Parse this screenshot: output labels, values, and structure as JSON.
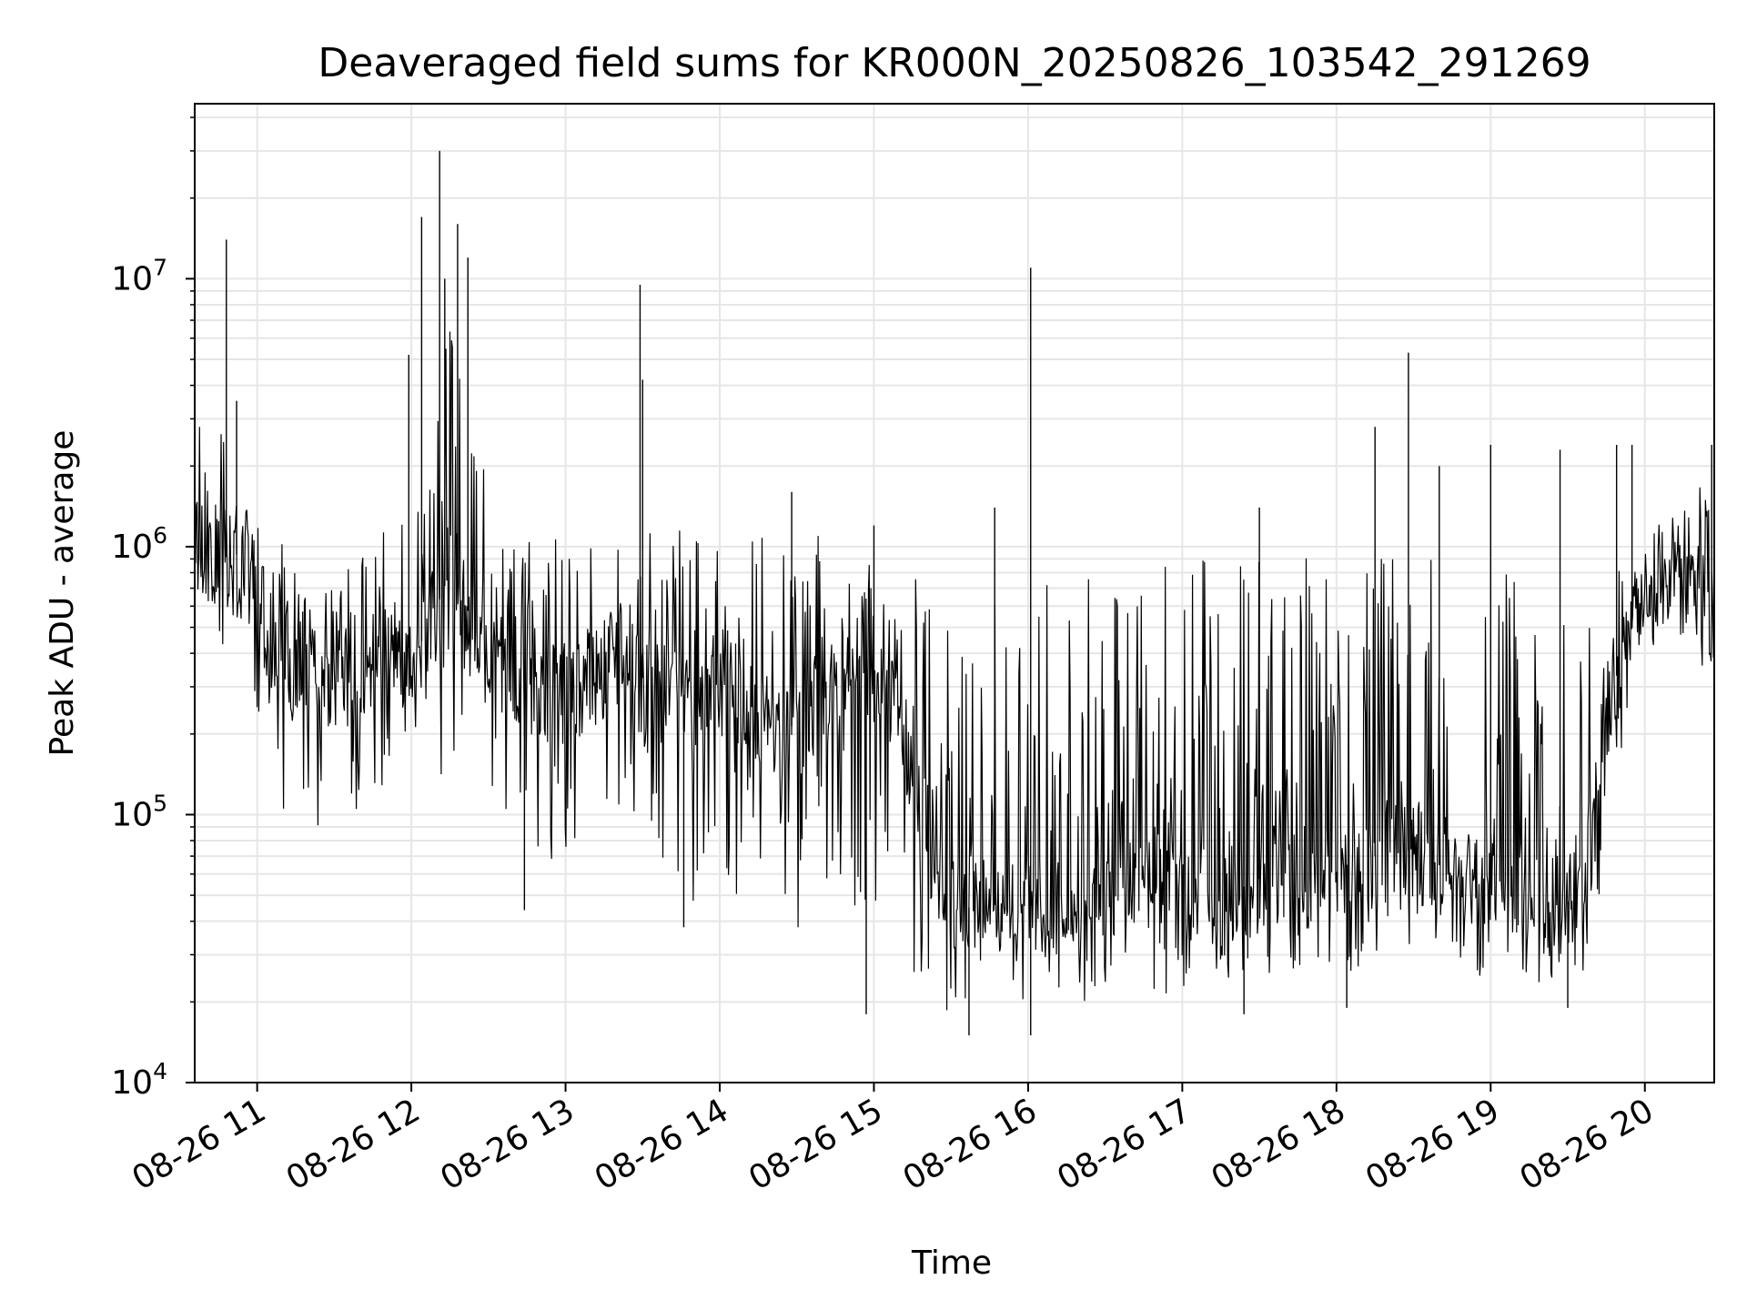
{
  "chart_data": {
    "type": "line",
    "title": "Deaveraged field sums for KR000N_20250826_103542_291269",
    "xlabel": "Time",
    "ylabel": "Peak ADU - average",
    "yscale": "log",
    "ylim": [
      10000,
      45000000
    ],
    "xlim": [
      "2025-08-26 10:35:42",
      "2025-08-26 20:27:00"
    ],
    "grid": true,
    "grid_color": "#e6e6e6",
    "line_color": "#000000",
    "x_ticks": [
      {
        "label": "08-26 11",
        "time": "2025-08-26 11:00"
      },
      {
        "label": "08-26 12",
        "time": "2025-08-26 12:00"
      },
      {
        "label": "08-26 13",
        "time": "2025-08-26 13:00"
      },
      {
        "label": "08-26 14",
        "time": "2025-08-26 14:00"
      },
      {
        "label": "08-26 15",
        "time": "2025-08-26 15:00"
      },
      {
        "label": "08-26 16",
        "time": "2025-08-26 16:00"
      },
      {
        "label": "08-26 17",
        "time": "2025-08-26 17:00"
      },
      {
        "label": "08-26 18",
        "time": "2025-08-26 18:00"
      },
      {
        "label": "08-26 19",
        "time": "2025-08-26 19:00"
      },
      {
        "label": "08-26 20",
        "time": "2025-08-26 20:00"
      }
    ],
    "y_ticks": [
      {
        "base": "10",
        "exp": "4",
        "value": 10000
      },
      {
        "base": "10",
        "exp": "5",
        "value": 100000
      },
      {
        "base": "10",
        "exp": "6",
        "value": 1000000
      },
      {
        "base": "10",
        "exp": "7",
        "value": 10000000
      }
    ],
    "series": [
      {
        "x": [
          "2025-08-26 10:35",
          "2025-08-26 10:45",
          "2025-08-26 10:55",
          "2025-08-26 11:05",
          "2025-08-26 11:15",
          "2025-08-26 11:25",
          "2025-08-26 11:35",
          "2025-08-26 11:45",
          "2025-08-26 11:55",
          "2025-08-26 12:05",
          "2025-08-26 12:15",
          "2025-08-26 12:25",
          "2025-08-26 12:35",
          "2025-08-26 12:45",
          "2025-08-26 12:55",
          "2025-08-26 13:05",
          "2025-08-26 13:15",
          "2025-08-26 13:25",
          "2025-08-26 13:35",
          "2025-08-26 13:45",
          "2025-08-26 13:55",
          "2025-08-26 14:05",
          "2025-08-26 14:15",
          "2025-08-26 14:25",
          "2025-08-26 14:35",
          "2025-08-26 14:45",
          "2025-08-26 14:55",
          "2025-08-26 15:05",
          "2025-08-26 15:15",
          "2025-08-26 15:25",
          "2025-08-26 15:35",
          "2025-08-26 15:45",
          "2025-08-26 15:55",
          "2025-08-26 16:05",
          "2025-08-26 16:15",
          "2025-08-26 16:25",
          "2025-08-26 16:35",
          "2025-08-26 16:45",
          "2025-08-26 16:55",
          "2025-08-26 17:05",
          "2025-08-26 17:15",
          "2025-08-26 17:25",
          "2025-08-26 17:35",
          "2025-08-26 17:45",
          "2025-08-26 17:55",
          "2025-08-26 18:05",
          "2025-08-26 18:15",
          "2025-08-26 18:25",
          "2025-08-26 18:35",
          "2025-08-26 18:45",
          "2025-08-26 18:55",
          "2025-08-26 19:05",
          "2025-08-26 19:15",
          "2025-08-26 19:25",
          "2025-08-26 19:35",
          "2025-08-26 19:45",
          "2025-08-26 19:55",
          "2025-08-26 20:05",
          "2025-08-26 20:15",
          "2025-08-26 20:25"
        ],
        "y_median": [
          1100000,
          900000,
          950000,
          450000,
          350000,
          300000,
          350000,
          380000,
          400000,
          450000,
          800000,
          500000,
          350000,
          300000,
          280000,
          300000,
          350000,
          350000,
          300000,
          280000,
          280000,
          250000,
          220000,
          200000,
          250000,
          300000,
          350000,
          300000,
          150000,
          60000,
          45000,
          45000,
          50000,
          45000,
          45000,
          50000,
          60000,
          65000,
          60000,
          50000,
          45000,
          55000,
          60000,
          55000,
          65000,
          65000,
          70000,
          75000,
          70000,
          60000,
          60000,
          55000,
          50000,
          45000,
          50000,
          250000,
          500000,
          700000,
          750000,
          600000
        ],
        "y_low": [
          600000,
          400000,
          400000,
          120000,
          80000,
          90000,
          100000,
          110000,
          120000,
          100000,
          150000,
          150000,
          100000,
          70000,
          60000,
          80000,
          100000,
          100000,
          55000,
          45000,
          40000,
          40000,
          35000,
          35000,
          40000,
          40000,
          45000,
          40000,
          25000,
          18000,
          18000,
          18000,
          20000,
          20000,
          20000,
          20000,
          22000,
          20000,
          20000,
          22000,
          22000,
          25000,
          25000,
          25000,
          25000,
          25000,
          28000,
          28000,
          30000,
          28000,
          25000,
          23000,
          22000,
          22000,
          22000,
          70000,
          300000,
          500000,
          450000,
          280000
        ],
        "y_high": [
          2800000,
          3500000,
          1500000,
          1100000,
          1000000,
          900000,
          1000000,
          1100000,
          1200000,
          1500000,
          9000000,
          2500000,
          1200000,
          1100000,
          1100000,
          1200000,
          1300000,
          1300000,
          1300000,
          1300000,
          1300000,
          1200000,
          1100000,
          1100000,
          1100000,
          1100000,
          1100000,
          1000000,
          900000,
          600000,
          600000,
          650000,
          700000,
          700000,
          800000,
          800000,
          900000,
          1000000,
          1000000,
          900000,
          900000,
          900000,
          1000000,
          900000,
          1000000,
          900000,
          1000000,
          1000000,
          900000,
          900000,
          800000,
          800000,
          700000,
          600000,
          600000,
          700000,
          1000000,
          1200000,
          1600000,
          1800000
        ],
        "spikes": [
          {
            "x": "2025-08-26 10:48",
            "y": 14000000
          },
          {
            "x": "2025-08-26 10:52",
            "y": 3500000
          },
          {
            "x": "2025-08-26 11:59",
            "y": 5200000
          },
          {
            "x": "2025-08-26 12:04",
            "y": 17000000
          },
          {
            "x": "2025-08-26 12:11",
            "y": 30000000
          },
          {
            "x": "2025-08-26 12:13",
            "y": 10000000
          },
          {
            "x": "2025-08-26 12:18",
            "y": 16000000
          },
          {
            "x": "2025-08-26 12:22",
            "y": 12000000
          },
          {
            "x": "2025-08-26 13:29",
            "y": 9500000
          },
          {
            "x": "2025-08-26 13:30",
            "y": 4200000
          },
          {
            "x": "2025-08-26 14:28",
            "y": 1600000
          },
          {
            "x": "2025-08-26 15:00",
            "y": 1200000
          },
          {
            "x": "2025-08-26 15:47",
            "y": 1400000
          },
          {
            "x": "2025-08-26 16:01",
            "y": 11000000
          },
          {
            "x": "2025-08-26 17:30",
            "y": 1400000
          },
          {
            "x": "2025-08-26 18:15",
            "y": 2800000
          },
          {
            "x": "2025-08-26 18:28",
            "y": 5300000
          },
          {
            "x": "2025-08-26 18:40",
            "y": 2000000
          },
          {
            "x": "2025-08-26 19:00",
            "y": 2400000
          },
          {
            "x": "2025-08-26 19:27",
            "y": 2300000
          },
          {
            "x": "2025-08-26 19:49",
            "y": 2400000
          },
          {
            "x": "2025-08-26 19:55",
            "y": 2400000
          },
          {
            "x": "2025-08-26 20:26",
            "y": 2400000
          }
        ],
        "dips": [
          {
            "x": "2025-08-26 12:44",
            "y": 44000
          },
          {
            "x": "2025-08-26 13:46",
            "y": 38000
          },
          {
            "x": "2025-08-26 14:57",
            "y": 18000
          },
          {
            "x": "2025-08-26 15:37",
            "y": 15000
          },
          {
            "x": "2025-08-26 16:01",
            "y": 15000
          },
          {
            "x": "2025-08-26 17:24",
            "y": 18000
          },
          {
            "x": "2025-08-26 18:04",
            "y": 19000
          },
          {
            "x": "2025-08-26 19:30",
            "y": 19000
          }
        ]
      }
    ]
  }
}
